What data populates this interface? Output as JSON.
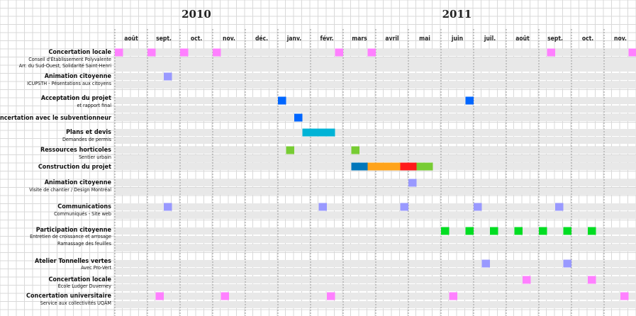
{
  "chart_data": {
    "type": "gantt",
    "years": [
      {
        "label": "2010",
        "from_month": 0,
        "to_month": 5
      },
      {
        "label": "2011",
        "from_month": 5,
        "to_month": 16
      }
    ],
    "months": [
      "août",
      "sept.",
      "oct.",
      "nov.",
      "déc.",
      "janv.",
      "févr.",
      "mars",
      "avril",
      "mai",
      "juin",
      "juil.",
      "août",
      "sept.",
      "oct.",
      "nov."
    ],
    "rows": [
      {
        "lines": [
          {
            "text": "Concertation locale",
            "bold": true
          },
          {
            "text": "Conseil d'Établissement Polyvalente",
            "bold": false
          },
          {
            "text": "Arr. du Sud-Ouest, Solidarité Saint-Henri",
            "bold": false
          }
        ]
      },
      {
        "lines": [
          {
            "text": "Animation citoyenne",
            "bold": true
          },
          {
            "text": "ICUPSTH - Pésentations aux citoyens",
            "bold": false
          }
        ]
      },
      {
        "lines": [
          {
            "text": "Acceptation du projet",
            "bold": true
          },
          {
            "text": "et rapport final",
            "bold": false
          }
        ]
      },
      {
        "lines": [
          {
            "text": "Concertation avec le subventionneur",
            "bold": true
          }
        ]
      },
      {
        "lines": [
          {
            "text": "Plans et devis",
            "bold": true
          },
          {
            "text": "Demandes de permis",
            "bold": false
          }
        ]
      },
      {
        "lines": [
          {
            "text": "Ressources horticoles",
            "bold": true
          },
          {
            "text": "Sentier urbain",
            "bold": false
          }
        ]
      },
      {
        "lines": [
          {
            "text": "Construction du projet",
            "bold": true
          }
        ]
      },
      {
        "lines": [
          {
            "text": "Animation citoyenne",
            "bold": true
          },
          {
            "text": "Visite de chantier / Design Montréal",
            "bold": false
          }
        ]
      },
      {
        "lines": [
          {
            "text": "Communications",
            "bold": true
          },
          {
            "text": "Communiqués - Site web",
            "bold": false
          }
        ]
      },
      {
        "lines": [
          {
            "text": "Participation citoyenne",
            "bold": true
          },
          {
            "text": "Entretien  de croissance et arrosage",
            "bold": false
          },
          {
            "text": "Ramassage des feuilles",
            "bold": false
          }
        ]
      },
      {
        "lines": [
          {
            "text": "Atelier Tonnelles vertes",
            "bold": true
          },
          {
            "text": "Avec Pro-Vert",
            "bold": false
          }
        ]
      },
      {
        "lines": [
          {
            "text": "Concertation locale",
            "bold": true
          },
          {
            "text": "École Ludger Duverney",
            "bold": false
          }
        ]
      },
      {
        "lines": [
          {
            "text": "Concertation universitaire",
            "bold": true
          },
          {
            "text": "Service aux collectivités UQÀM",
            "bold": false
          }
        ]
      }
    ],
    "bars": [
      {
        "row": 0,
        "start": 0.0,
        "end": 0.25,
        "color": "#ff80ff"
      },
      {
        "row": 0,
        "start": 1.0,
        "end": 1.25,
        "color": "#ff80ff"
      },
      {
        "row": 0,
        "start": 2.0,
        "end": 2.25,
        "color": "#ff80ff"
      },
      {
        "row": 0,
        "start": 3.0,
        "end": 3.25,
        "color": "#ff80ff"
      },
      {
        "row": 0,
        "start": 6.75,
        "end": 7.0,
        "color": "#ff80ff"
      },
      {
        "row": 0,
        "start": 7.75,
        "end": 8.0,
        "color": "#ff80ff"
      },
      {
        "row": 0,
        "start": 13.25,
        "end": 13.5,
        "color": "#ff80ff"
      },
      {
        "row": 0,
        "start": 15.75,
        "end": 16.0,
        "color": "#ff80ff"
      },
      {
        "row": 1,
        "start": 1.5,
        "end": 1.75,
        "color": "#9999ff"
      },
      {
        "row": 2,
        "start": 5.0,
        "end": 5.25,
        "color": "#0066ff"
      },
      {
        "row": 2,
        "start": 10.75,
        "end": 11.0,
        "color": "#0066ff"
      },
      {
        "row": 3,
        "start": 5.5,
        "end": 5.75,
        "color": "#0066ff"
      },
      {
        "row": 4,
        "start": 5.75,
        "end": 6.75,
        "color": "#00b3d6"
      },
      {
        "row": 5,
        "start": 5.25,
        "end": 5.5,
        "color": "#77cc33"
      },
      {
        "row": 5,
        "start": 7.25,
        "end": 7.5,
        "color": "#77cc33"
      },
      {
        "row": 6,
        "start": 7.25,
        "end": 7.75,
        "color": "#0077bb"
      },
      {
        "row": 6,
        "start": 7.75,
        "end": 8.75,
        "color": "#ffa31a"
      },
      {
        "row": 6,
        "start": 8.75,
        "end": 9.25,
        "color": "#ff1a1a"
      },
      {
        "row": 6,
        "start": 9.25,
        "end": 9.75,
        "color": "#77cc33"
      },
      {
        "row": 7,
        "start": 9.0,
        "end": 9.25,
        "color": "#9999ff"
      },
      {
        "row": 8,
        "start": 1.5,
        "end": 1.75,
        "color": "#9999ff"
      },
      {
        "row": 8,
        "start": 6.25,
        "end": 6.5,
        "color": "#9999ff"
      },
      {
        "row": 8,
        "start": 8.75,
        "end": 9.0,
        "color": "#9999ff"
      },
      {
        "row": 8,
        "start": 11.0,
        "end": 11.25,
        "color": "#9999ff"
      },
      {
        "row": 8,
        "start": 13.5,
        "end": 13.75,
        "color": "#9999ff"
      },
      {
        "row": 9,
        "start": 10.0,
        "end": 10.25,
        "color": "#00dd22"
      },
      {
        "row": 9,
        "start": 10.75,
        "end": 11.0,
        "color": "#00dd22"
      },
      {
        "row": 9,
        "start": 11.5,
        "end": 11.75,
        "color": "#00dd22"
      },
      {
        "row": 9,
        "start": 12.25,
        "end": 12.5,
        "color": "#00dd22"
      },
      {
        "row": 9,
        "start": 13.0,
        "end": 13.25,
        "color": "#00dd22"
      },
      {
        "row": 9,
        "start": 13.75,
        "end": 14.0,
        "color": "#00dd22"
      },
      {
        "row": 9,
        "start": 14.5,
        "end": 14.75,
        "color": "#00dd22"
      },
      {
        "row": 10,
        "start": 11.25,
        "end": 11.5,
        "color": "#9999ff"
      },
      {
        "row": 10,
        "start": 13.75,
        "end": 14.0,
        "color": "#9999ff"
      },
      {
        "row": 11,
        "start": 12.5,
        "end": 12.75,
        "color": "#ff80ff"
      },
      {
        "row": 11,
        "start": 14.5,
        "end": 14.75,
        "color": "#ff80ff"
      },
      {
        "row": 12,
        "start": 1.25,
        "end": 1.5,
        "color": "#ff80ff"
      },
      {
        "row": 12,
        "start": 3.25,
        "end": 3.5,
        "color": "#ff80ff"
      },
      {
        "row": 12,
        "start": 6.5,
        "end": 6.75,
        "color": "#ff80ff"
      },
      {
        "row": 12,
        "start": 10.25,
        "end": 10.5,
        "color": "#ff80ff"
      },
      {
        "row": 12,
        "start": 15.5,
        "end": 15.75,
        "color": "#ff80ff"
      }
    ]
  }
}
